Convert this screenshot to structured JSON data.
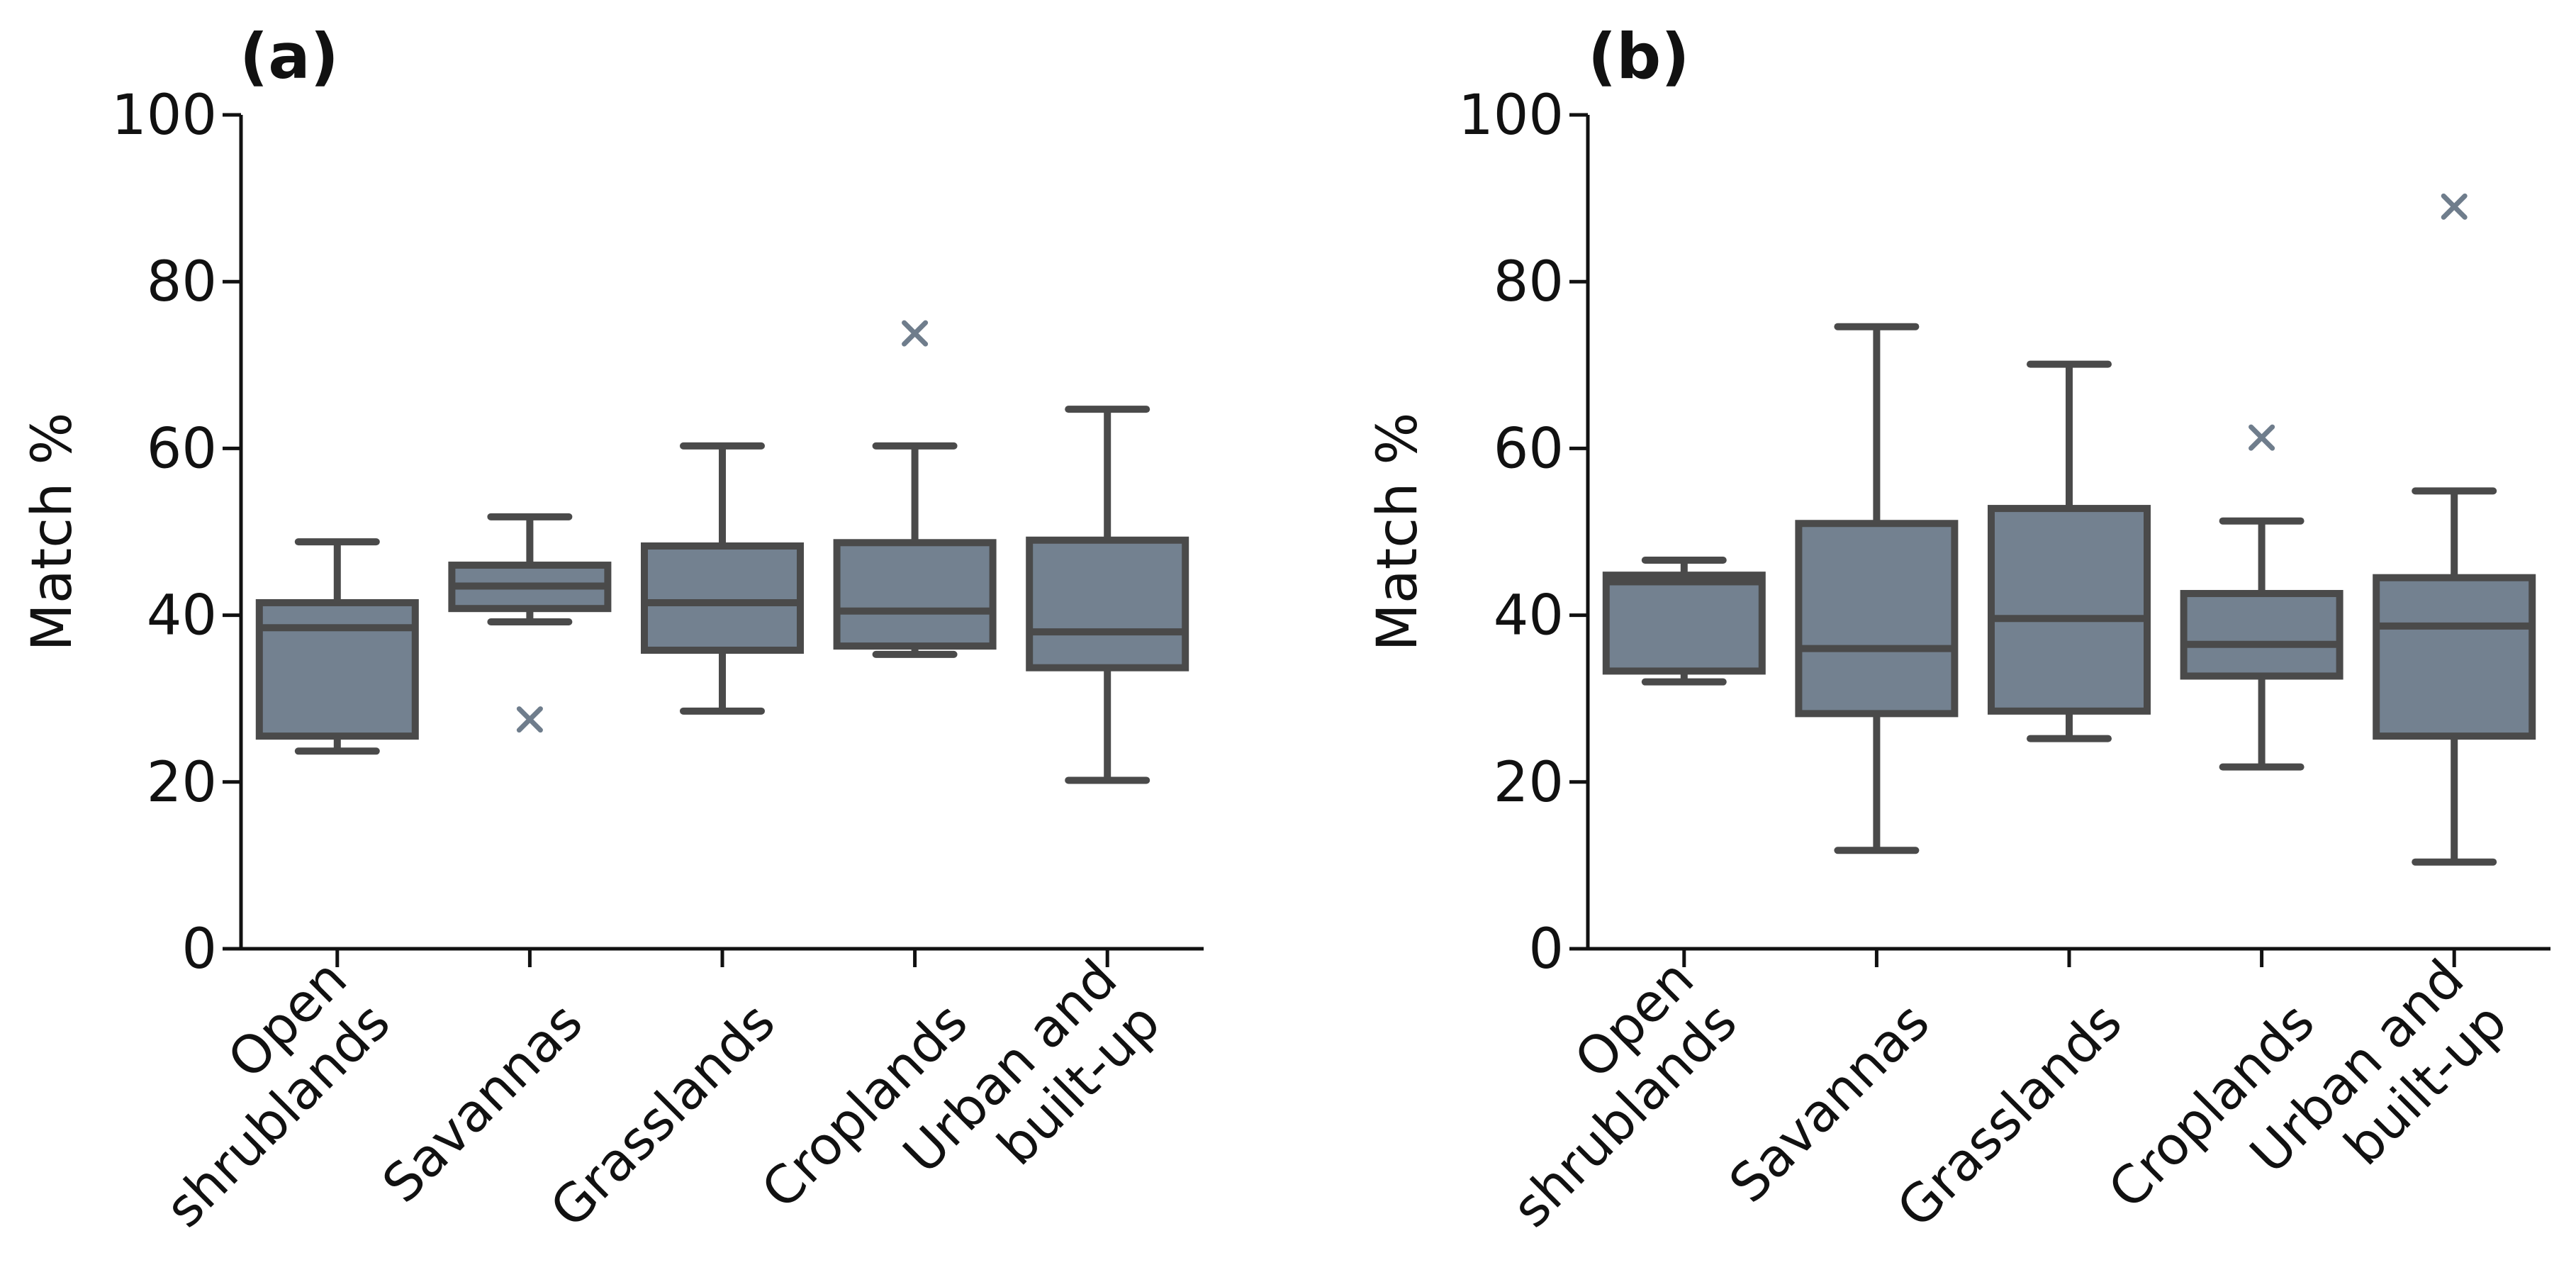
{
  "chart_data": [
    {
      "type": "box",
      "panel_label": "(a)",
      "ylabel": "Match %",
      "ylim": [
        0,
        100
      ],
      "yticks": [
        0,
        20,
        40,
        60,
        80,
        100
      ],
      "categories": [
        [
          "Open",
          "shrublands"
        ],
        [
          "Savannas"
        ],
        [
          "Grasslands"
        ],
        [
          "Croplands"
        ],
        [
          "Urban and",
          "built-up"
        ]
      ],
      "boxes": [
        {
          "whisker_low": 23.7,
          "q1": 25.5,
          "median": 38.5,
          "q3": 41.5,
          "whisker_high": 48.8,
          "outliers": []
        },
        {
          "whisker_low": 39.2,
          "q1": 40.8,
          "median": 43.5,
          "q3": 46.0,
          "whisker_high": 51.8,
          "outliers": [
            27.5
          ]
        },
        {
          "whisker_low": 28.5,
          "q1": 35.8,
          "median": 41.5,
          "q3": 48.3,
          "whisker_high": 60.3,
          "outliers": []
        },
        {
          "whisker_low": 35.3,
          "q1": 36.3,
          "median": 40.5,
          "q3": 48.7,
          "whisker_high": 60.3,
          "outliers": [
            73.8
          ]
        },
        {
          "whisker_low": 20.2,
          "q1": 33.7,
          "median": 38.0,
          "q3": 49.0,
          "whisker_high": 64.7,
          "outliers": []
        }
      ],
      "colors": {
        "fill": "#738190",
        "edge": "#4a4a4a",
        "outlier": "#6f7d8c"
      }
    },
    {
      "type": "box",
      "panel_label": "(b)",
      "ylabel": "Match %",
      "ylim": [
        0,
        100
      ],
      "yticks": [
        0,
        20,
        40,
        60,
        80,
        100
      ],
      "categories": [
        [
          "Open",
          "shrublands"
        ],
        [
          "Savannas"
        ],
        [
          "Grasslands"
        ],
        [
          "Croplands"
        ],
        [
          "Urban and",
          "built-up"
        ]
      ],
      "boxes": [
        {
          "whisker_low": 32.0,
          "q1": 33.3,
          "median": 44.0,
          "q3": 44.8,
          "whisker_high": 46.6,
          "outliers": []
        },
        {
          "whisker_low": 11.8,
          "q1": 28.2,
          "median": 36.0,
          "q3": 51.0,
          "whisker_high": 74.6,
          "outliers": []
        },
        {
          "whisker_low": 25.2,
          "q1": 28.5,
          "median": 39.6,
          "q3": 52.8,
          "whisker_high": 70.1,
          "outliers": []
        },
        {
          "whisker_low": 21.8,
          "q1": 32.7,
          "median": 36.5,
          "q3": 42.6,
          "whisker_high": 51.3,
          "outliers": [
            61.3
          ]
        },
        {
          "whisker_low": 10.4,
          "q1": 25.5,
          "median": 38.7,
          "q3": 44.5,
          "whisker_high": 54.9,
          "outliers": [
            89.0
          ]
        }
      ],
      "colors": {
        "fill": "#738190",
        "edge": "#4a4a4a",
        "outlier": "#6f7d8c"
      }
    }
  ]
}
